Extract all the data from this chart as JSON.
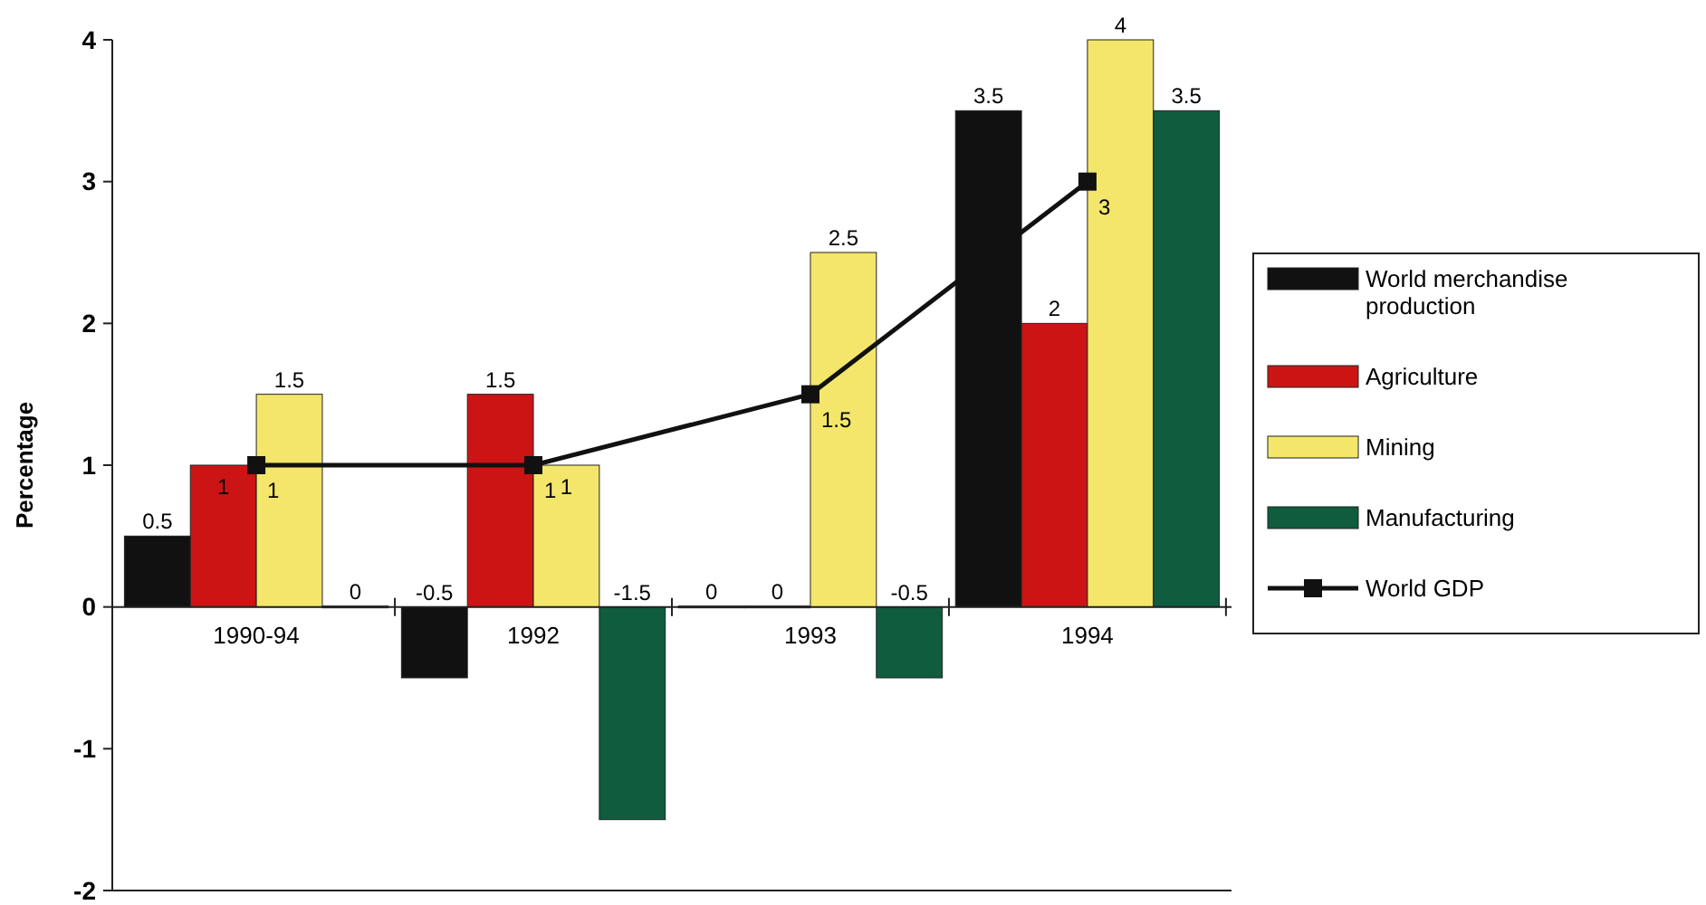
{
  "chart_data": {
    "type": "bar",
    "ylabel": "Percentage",
    "categories": [
      "1990-94",
      "1992",
      "1993",
      "1994"
    ],
    "series": [
      {
        "name": "World merchandise production",
        "color": "#111111",
        "values": [
          0.5,
          -0.5,
          0,
          3.5
        ]
      },
      {
        "name": "Agriculture",
        "color": "#cc1414",
        "values": [
          1,
          1.5,
          0,
          2
        ]
      },
      {
        "name": "Mining",
        "color": "#f3e66a",
        "values": [
          1.5,
          1,
          2.5,
          4
        ]
      },
      {
        "name": "Manufacturing",
        "color": "#0f5c3e",
        "values": [
          0,
          -1.5,
          -0.5,
          3.5
        ]
      },
      {
        "name": "World GDP",
        "type": "line",
        "color": "#111111",
        "values": [
          1,
          1,
          1.5,
          3
        ],
        "marker": "square"
      }
    ],
    "ylim": [
      -2,
      4
    ],
    "yticks": [
      -2,
      -1,
      0,
      1,
      2,
      3,
      4
    ],
    "data_labels": true,
    "legend": "right",
    "grid": false
  }
}
